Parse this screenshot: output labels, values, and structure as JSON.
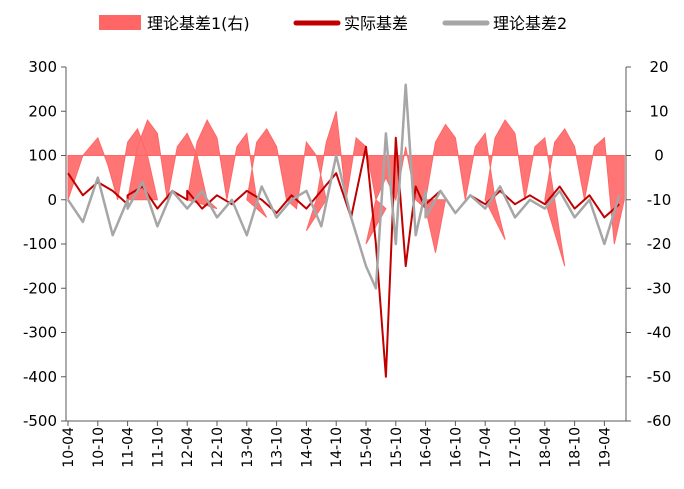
{
  "chart_data": {
    "type": "line",
    "title": "",
    "legend_position": "top",
    "grid": false,
    "x_tick_labels": [
      "10-04",
      "10-10",
      "11-04",
      "11-10",
      "12-04",
      "12-10",
      "13-04",
      "13-10",
      "14-04",
      "14-10",
      "15-04",
      "15-10",
      "16-04",
      "16-10",
      "17-04",
      "17-10",
      "18-04",
      "18-10",
      "19-04"
    ],
    "left_axis": {
      "ylim": [
        -500,
        300
      ],
      "ticks": [
        "300",
        "200",
        "100",
        "0",
        "-100",
        "-200",
        "-300",
        "-400",
        "-500"
      ]
    },
    "right_axis": {
      "ylim": [
        -60,
        20
      ],
      "ticks": [
        "20",
        "10",
        "0",
        "-10",
        "-20",
        "-30",
        "-40",
        "-50",
        "-60"
      ]
    },
    "series": [
      {
        "name": "理论基差1(右)",
        "style": "area",
        "axis": "right",
        "color": "#ff6666",
        "points": [
          [
            "10-04",
            -10
          ],
          [
            "10-07",
            0
          ],
          [
            "10-10",
            4
          ],
          [
            "10-12",
            -2
          ],
          [
            "10-14",
            -10
          ],
          [
            "10-16",
            3
          ],
          [
            "10-18",
            6
          ],
          [
            "10-20",
            0
          ],
          [
            "10-22",
            -10
          ],
          [
            "11-04",
            -10
          ],
          [
            "11-06",
            2
          ],
          [
            "11-08",
            8
          ],
          [
            "11-10",
            5
          ],
          [
            "11-12",
            -10
          ],
          [
            "11-14",
            2
          ],
          [
            "11-16",
            5
          ],
          [
            "11-18",
            0
          ],
          [
            "11-20",
            -10
          ],
          [
            "11-22",
            -12
          ],
          [
            "12-04",
            -10
          ],
          [
            "12-06",
            3
          ],
          [
            "12-08",
            8
          ],
          [
            "12-10",
            4
          ],
          [
            "12-12",
            -10
          ],
          [
            "12-14",
            2
          ],
          [
            "12-16",
            5
          ],
          [
            "12-18",
            -10
          ],
          [
            "12-20",
            -14
          ],
          [
            "13-04",
            -10
          ],
          [
            "13-06",
            3
          ],
          [
            "13-08",
            6
          ],
          [
            "13-10",
            2
          ],
          [
            "13-12",
            -10
          ],
          [
            "13-14",
            -12
          ],
          [
            "13-16",
            3
          ],
          [
            "13-18",
            0
          ],
          [
            "13-20",
            -10
          ],
          [
            "14-04",
            -17
          ],
          [
            "14-06",
            -10
          ],
          [
            "14-08",
            3
          ],
          [
            "14-10",
            10
          ],
          [
            "14-12",
            -10
          ],
          [
            "14-14",
            4
          ],
          [
            "14-16",
            2
          ],
          [
            "14-18",
            -10
          ],
          [
            "14-20",
            -12
          ],
          [
            "15-04",
            -20
          ],
          [
            "15-06",
            -10
          ],
          [
            "15-08",
            -5
          ],
          [
            "15-10",
            -10
          ],
          [
            "15-12",
            2
          ],
          [
            "15-14",
            -10
          ],
          [
            "15-16",
            -12
          ],
          [
            "15-18",
            -22
          ],
          [
            "15-20",
            -10
          ],
          [
            "16-04",
            -10
          ],
          [
            "16-06",
            3
          ],
          [
            "16-08",
            7
          ],
          [
            "16-10",
            4
          ],
          [
            "16-12",
            -10
          ],
          [
            "16-14",
            2
          ],
          [
            "16-16",
            5
          ],
          [
            "16-18",
            -10
          ],
          [
            "16-20",
            -19
          ],
          [
            "17-04",
            -10
          ],
          [
            "17-06",
            4
          ],
          [
            "17-08",
            8
          ],
          [
            "17-10",
            5
          ],
          [
            "17-12",
            -10
          ],
          [
            "17-14",
            2
          ],
          [
            "17-16",
            4
          ],
          [
            "17-18",
            -10
          ],
          [
            "17-20",
            -25
          ],
          [
            "18-04",
            -10
          ],
          [
            "18-06",
            3
          ],
          [
            "18-08",
            6
          ],
          [
            "18-10",
            2
          ],
          [
            "18-12",
            -10
          ],
          [
            "18-14",
            2
          ],
          [
            "18-16",
            4
          ],
          [
            "18-18",
            -20
          ],
          [
            "18-20",
            -10
          ]
        ]
      },
      {
        "name": "实际基差",
        "style": "line",
        "axis": "left",
        "color": "#c00000",
        "points": [
          [
            "10-04",
            60
          ],
          [
            "10-07",
            10
          ],
          [
            "10-10",
            40
          ],
          [
            "10-13",
            20
          ],
          [
            "10-16",
            -10
          ],
          [
            "11-04",
            10
          ],
          [
            "11-07",
            30
          ],
          [
            "11-10",
            -20
          ],
          [
            "11-13",
            20
          ],
          [
            "11-16",
            0
          ],
          [
            "12-04",
            20
          ],
          [
            "12-07",
            -20
          ],
          [
            "12-10",
            10
          ],
          [
            "12-13",
            -10
          ],
          [
            "13-04",
            20
          ],
          [
            "13-07",
            0
          ],
          [
            "13-10",
            -30
          ],
          [
            "13-13",
            10
          ],
          [
            "14-04",
            -20
          ],
          [
            "14-07",
            20
          ],
          [
            "14-10",
            60
          ],
          [
            "14-13",
            -40
          ],
          [
            "15-04",
            120
          ],
          [
            "15-06",
            -100
          ],
          [
            "15-08",
            -400
          ],
          [
            "15-10",
            140
          ],
          [
            "15-12",
            -150
          ],
          [
            "15-14",
            30
          ],
          [
            "15-16",
            -20
          ],
          [
            "16-04",
            -10
          ],
          [
            "16-07",
            20
          ],
          [
            "16-10",
            -30
          ],
          [
            "16-13",
            10
          ],
          [
            "17-04",
            -10
          ],
          [
            "17-07",
            20
          ],
          [
            "17-10",
            -10
          ],
          [
            "17-13",
            10
          ],
          [
            "18-04",
            -10
          ],
          [
            "18-07",
            30
          ],
          [
            "18-10",
            -20
          ],
          [
            "18-13",
            10
          ],
          [
            "19-04",
            -40
          ],
          [
            "19-07",
            -10
          ]
        ]
      },
      {
        "name": "理论基差2",
        "style": "line",
        "axis": "right",
        "color": "#a6a6a6",
        "points": [
          [
            "10-04",
            -10
          ],
          [
            "10-07",
            -15
          ],
          [
            "10-10",
            -5
          ],
          [
            "10-13",
            -18
          ],
          [
            "10-16",
            -10
          ],
          [
            "11-04",
            -12
          ],
          [
            "11-07",
            -6
          ],
          [
            "11-10",
            -16
          ],
          [
            "11-13",
            -8
          ],
          [
            "12-04",
            -12
          ],
          [
            "12-07",
            -8
          ],
          [
            "12-10",
            -14
          ],
          [
            "12-13",
            -10
          ],
          [
            "13-04",
            -18
          ],
          [
            "13-07",
            -7
          ],
          [
            "13-10",
            -14
          ],
          [
            "13-13",
            -10
          ],
          [
            "14-04",
            -8
          ],
          [
            "14-07",
            -16
          ],
          [
            "14-10",
            0
          ],
          [
            "14-13",
            -14
          ],
          [
            "15-04",
            -25
          ],
          [
            "15-06",
            -30
          ],
          [
            "15-08",
            5
          ],
          [
            "15-10",
            -20
          ],
          [
            "15-12",
            16
          ],
          [
            "15-14",
            -18
          ],
          [
            "15-16",
            -8
          ],
          [
            "16-04",
            -14
          ],
          [
            "16-07",
            -8
          ],
          [
            "16-10",
            -13
          ],
          [
            "16-13",
            -9
          ],
          [
            "17-04",
            -12
          ],
          [
            "17-07",
            -7
          ],
          [
            "17-10",
            -14
          ],
          [
            "17-13",
            -10
          ],
          [
            "18-04",
            -12
          ],
          [
            "18-07",
            -8
          ],
          [
            "18-10",
            -14
          ],
          [
            "18-13",
            -10
          ],
          [
            "19-04",
            -20
          ],
          [
            "19-07",
            -9
          ]
        ]
      }
    ]
  }
}
